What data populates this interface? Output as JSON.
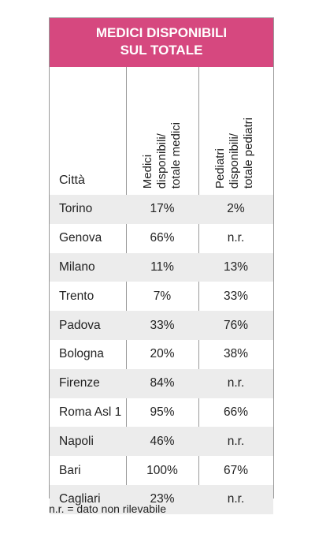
{
  "title": {
    "line1": "MEDICI DISPONIBILI",
    "line2": "SUL TOTALE"
  },
  "headers": {
    "city": "Città",
    "doctors": "Medici\ndisponibili/\ntotale medici",
    "pediatricians": "Pediatri\ndisponibili/\ntotale pediatri"
  },
  "rows": [
    {
      "city": "Torino",
      "doctors": "17%",
      "pediatricians": "2%"
    },
    {
      "city": "Genova",
      "doctors": "66%",
      "pediatricians": "n.r."
    },
    {
      "city": "Milano",
      "doctors": "11%",
      "pediatricians": "13%"
    },
    {
      "city": "Trento",
      "doctors": "7%",
      "pediatricians": "33%"
    },
    {
      "city": "Padova",
      "doctors": "33%",
      "pediatricians": "76%"
    },
    {
      "city": "Bologna",
      "doctors": "20%",
      "pediatricians": "38%"
    },
    {
      "city": "Firenze",
      "doctors": "84%",
      "pediatricians": "n.r."
    },
    {
      "city": "Roma Asl 1",
      "doctors": "95%",
      "pediatricians": "66%"
    },
    {
      "city": "Napoli",
      "doctors": "46%",
      "pediatricians": "n.r."
    },
    {
      "city": "Bari",
      "doctors": "100%",
      "pediatricians": "67%"
    },
    {
      "city": "Cagliari",
      "doctors": "23%",
      "pediatricians": "n.r."
    }
  ],
  "footnote": "n.r. = dato non rilevabile",
  "colors": {
    "title_bg": "#d6487f",
    "row_shade": "#ececec",
    "border": "#9a9a9a"
  }
}
